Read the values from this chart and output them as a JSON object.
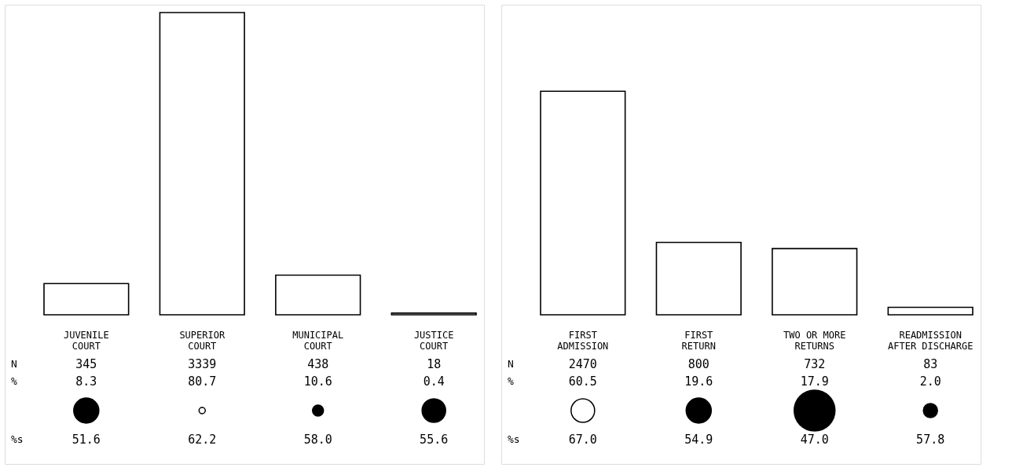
{
  "chart_data": [
    {
      "type": "bar",
      "categories": [
        "JUVENILE\nCOURT",
        "SUPERIOR\nCOURT",
        "MUNICIPAL\nCOURT",
        "JUSTICE\nCOURT"
      ],
      "data_labels": true,
      "series": [
        {
          "color": "#ffffff",
          "values": [
            345,
            3339,
            438,
            18
          ]
        }
      ],
      "annotations": [
        "N",
        "%",
        "%s",
        "8.3",
        "80.7",
        "10.6",
        "0.4",
        "51.6",
        "62.2",
        "58.0",
        "55.6"
      ]
    },
    {
      "type": "bar",
      "categories": [
        "FIRST\nADMISSION",
        "FIRST\nRETURN",
        "TWO OR MORE\nRETURNS",
        "READMISSION\nAFTER DISCHARGE"
      ],
      "data_labels": true,
      "series": [
        {
          "color": "#ffffff",
          "values": [
            2470,
            800,
            732,
            83
          ]
        }
      ],
      "annotations": [
        "N",
        "%",
        "%s",
        "60.5",
        "19.6",
        "17.9",
        "2.0",
        "67.0",
        "54.9",
        "47.0",
        "57.8"
      ]
    }
  ]
}
